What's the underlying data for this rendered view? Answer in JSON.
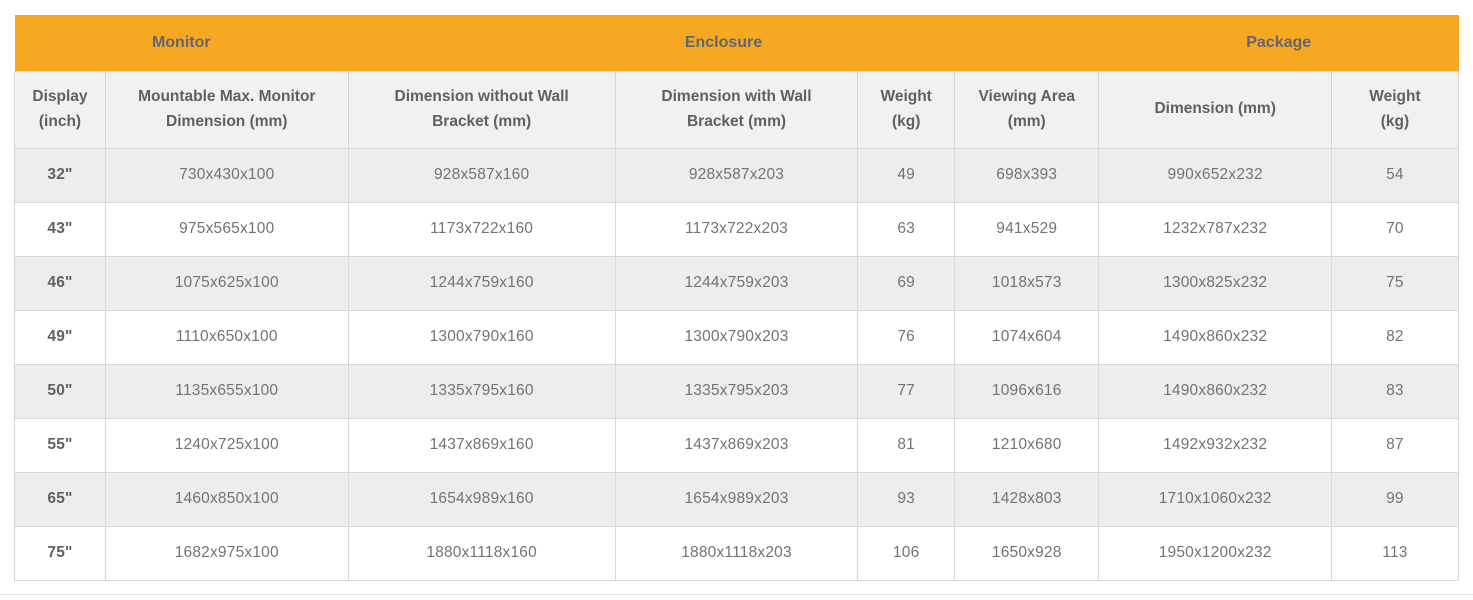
{
  "table": {
    "group_headers": [
      {
        "label": "Monitor",
        "colspan": 2
      },
      {
        "label": "Enclosure",
        "colspan": 4
      },
      {
        "label": "Package",
        "colspan": 2
      }
    ],
    "column_headers": [
      "Display\n(inch)",
      "Mountable Max. Monitor\nDimension (mm)",
      "Dimension without Wall\nBracket (mm)",
      "Dimension with Wall\nBracket (mm)",
      "Weight\n(kg)",
      "Viewing Area\n(mm)",
      "Dimension (mm)",
      "Weight\n(kg)"
    ],
    "column_widths_percent": [
      6.3,
      16.8,
      18.5,
      16.8,
      6.7,
      10.0,
      16.1,
      8.8
    ],
    "rows": [
      [
        "32\"",
        "730x430x100",
        "928x587x160",
        "928x587x203",
        "49",
        "698x393",
        "990x652x232",
        "54"
      ],
      [
        "43\"",
        "975x565x100",
        "1173x722x160",
        "1173x722x203",
        "63",
        "941x529",
        "1232x787x232",
        "70"
      ],
      [
        "46\"",
        "1075x625x100",
        "1244x759x160",
        "1244x759x203",
        "69",
        "1018x573",
        "1300x825x232",
        "75"
      ],
      [
        "49\"",
        "1110x650x100",
        "1300x790x160",
        "1300x790x203",
        "76",
        "1074x604",
        "1490x860x232",
        "82"
      ],
      [
        "50\"",
        "1135x655x100",
        "1335x795x160",
        "1335x795x203",
        "77",
        "1096x616",
        "1490x860x232",
        "83"
      ],
      [
        "55\"",
        "1240x725x100",
        "1437x869x160",
        "1437x869x203",
        "81",
        "1210x680",
        "1492x932x232",
        "87"
      ],
      [
        "65\"",
        "1460x850x100",
        "1654x989x160",
        "1654x989x203",
        "93",
        "1428x803",
        "1710x1060x232",
        "99"
      ],
      [
        "75\"",
        "1682x975x100",
        "1880x1118x160",
        "1880x1118x203",
        "106",
        "1650x928",
        "1950x1200x232",
        "113"
      ]
    ]
  },
  "colors": {
    "header_band": "#f7a823",
    "band_text": "#63666b",
    "header_bg": "#f1f1f2",
    "header_text": "#5d6064",
    "body_text": "#707378",
    "stripe_row": "#ededee",
    "border": "#d7d7d9",
    "bottom_divider": "#e4e4e9"
  }
}
